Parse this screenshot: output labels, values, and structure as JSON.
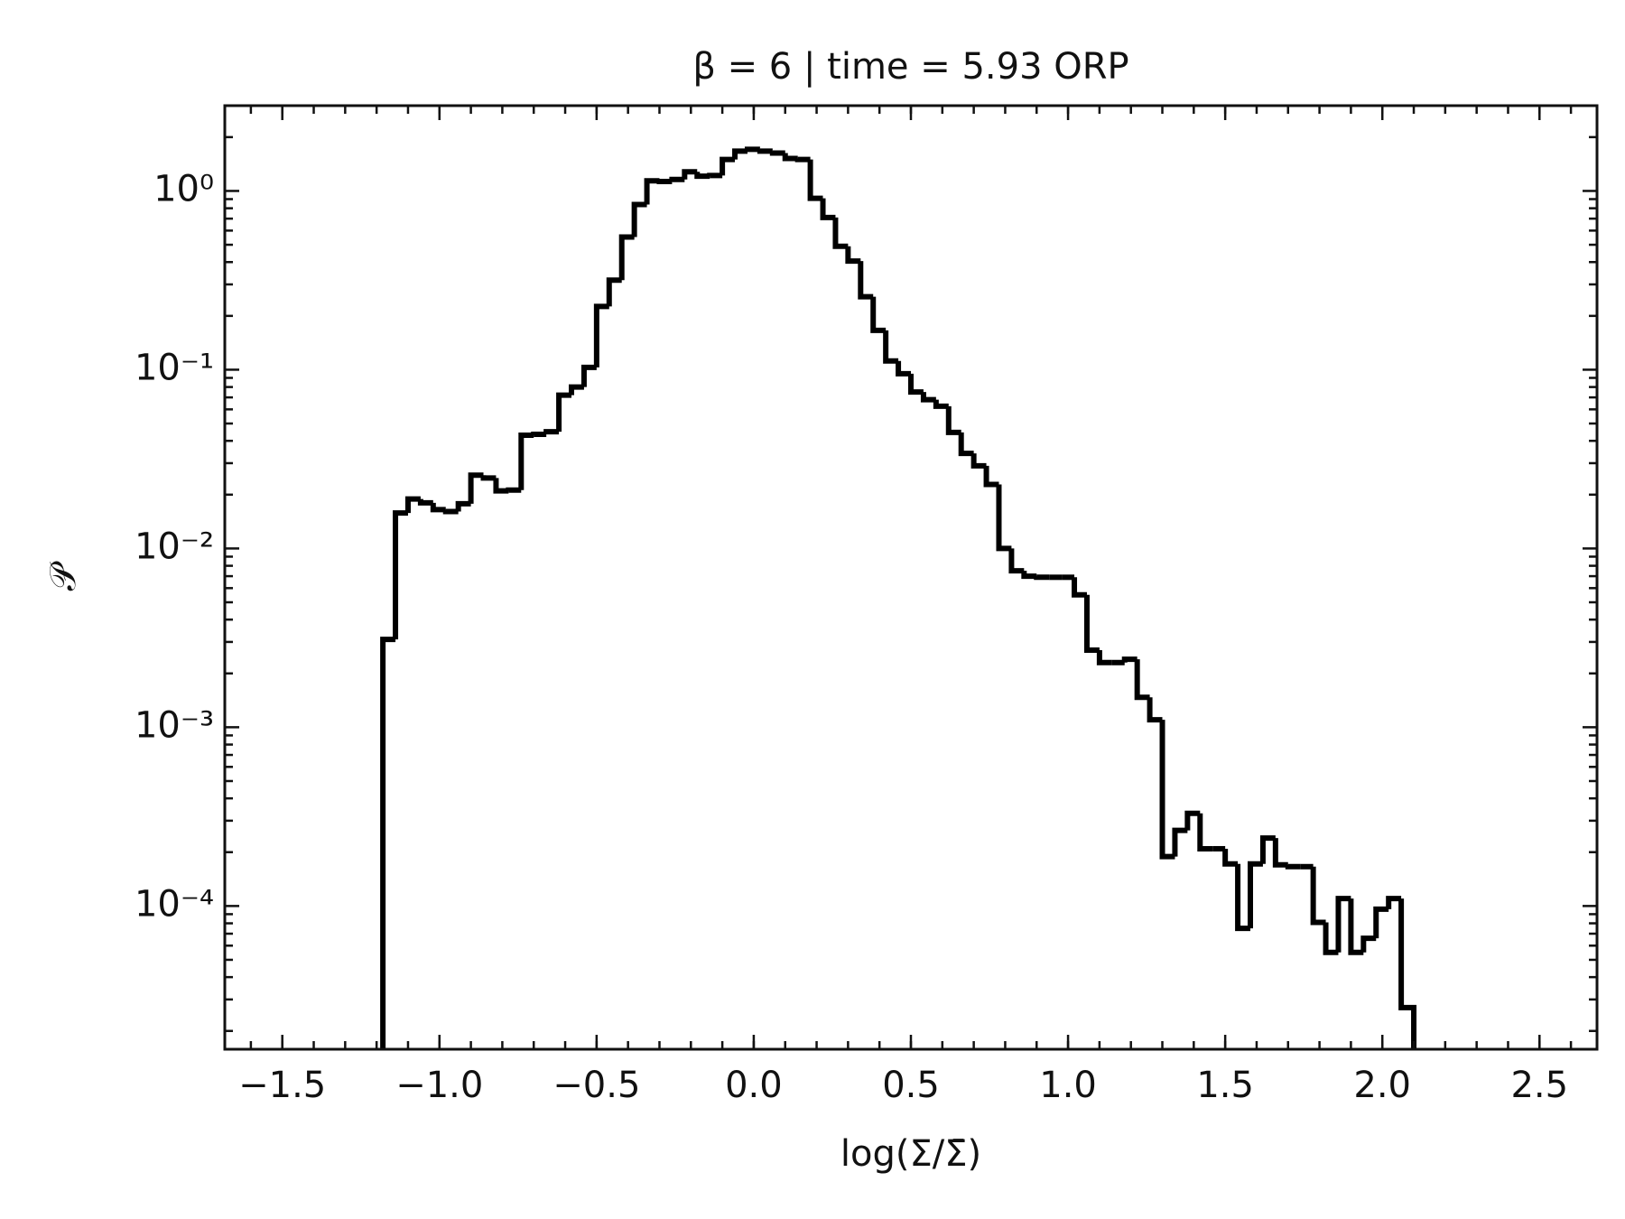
{
  "chart_data": {
    "type": "histogram",
    "title": "β = 6 | time = 5.93 ORP",
    "xlabel": "log(Σ/Σ̄)",
    "ylabel": "𝒫",
    "bins": [
      -1.18,
      -1.14,
      -1.1,
      -1.06,
      -1.02,
      -0.98,
      -0.94,
      -0.9,
      -0.86,
      -0.82,
      -0.78,
      -0.74,
      -0.7,
      -0.66,
      -0.62,
      -0.58,
      -0.54,
      -0.5,
      -0.46,
      -0.42,
      -0.38,
      -0.34,
      -0.3,
      -0.26,
      -0.22,
      -0.18,
      -0.14,
      -0.1,
      -0.06,
      -0.02,
      0.02,
      0.06,
      0.1,
      0.14,
      0.18,
      0.22,
      0.26,
      0.3,
      0.34,
      0.38,
      0.42,
      0.46,
      0.5,
      0.54,
      0.58,
      0.62,
      0.66,
      0.7,
      0.74,
      0.78,
      0.82,
      0.86,
      0.9,
      0.94,
      0.98,
      1.02,
      1.06,
      1.1,
      1.14,
      1.18,
      1.22,
      1.26,
      1.3,
      1.34,
      1.38,
      1.42,
      1.46,
      1.5,
      1.54,
      1.58,
      1.62,
      1.66,
      1.7,
      1.74,
      1.78,
      1.82,
      1.86,
      1.9,
      1.94,
      1.98,
      2.02,
      2.06,
      2.1
    ],
    "values": [
      0.0031,
      0.0158,
      0.0189,
      0.018,
      0.0165,
      0.0161,
      0.0178,
      0.0257,
      0.0248,
      0.021,
      0.0212,
      0.043,
      0.0435,
      0.045,
      0.072,
      0.08,
      0.103,
      0.226,
      0.317,
      0.552,
      0.84,
      1.14,
      1.13,
      1.16,
      1.28,
      1.21,
      1.22,
      1.5,
      1.67,
      1.71,
      1.67,
      1.63,
      1.52,
      1.5,
      0.91,
      0.71,
      0.49,
      0.405,
      0.256,
      0.166,
      0.112,
      0.095,
      0.075,
      0.068,
      0.0625,
      0.0446,
      0.034,
      0.029,
      0.0228,
      0.01,
      0.0075,
      0.007,
      0.0069,
      0.0069,
      0.0069,
      0.0055,
      0.0027,
      0.0023,
      0.0023,
      0.0024,
      0.00147,
      0.0011,
      0.000189,
      0.000265,
      0.00033,
      0.000209,
      0.000209,
      0.000172,
      7.5e-05,
      0.000172,
      0.00024,
      0.00017,
      0.000166,
      0.000166,
      8.1e-05,
      5.5e-05,
      0.00011,
      5.5e-05,
      6.6e-05,
      9.6e-05,
      0.00011,
      2.7e-05
    ],
    "color": "#000000",
    "xlim": [
      -1.683,
      2.683
    ],
    "ylim": [
      1.58e-05,
      3.0
    ],
    "yscale": "log",
    "xticks": [
      {
        "value": -1.5,
        "label": "−1.5"
      },
      {
        "value": -1.0,
        "label": "−1.0"
      },
      {
        "value": -0.5,
        "label": "−0.5"
      },
      {
        "value": 0,
        "label": "0.0"
      },
      0.5,
      {
        "value": 1,
        "label": "1.0"
      },
      1.5,
      {
        "value": 2,
        "label": "2.0"
      },
      2.5
    ],
    "yticks": [
      {
        "value": 1,
        "label": "10⁰"
      },
      {
        "value": 0.1,
        "label": "10⁻¹"
      },
      {
        "value": 0.01,
        "label": "10⁻²"
      },
      {
        "value": 0.001,
        "label": "10⁻³"
      },
      {
        "value": 0.0001,
        "label": "10⁻⁴"
      }
    ]
  }
}
